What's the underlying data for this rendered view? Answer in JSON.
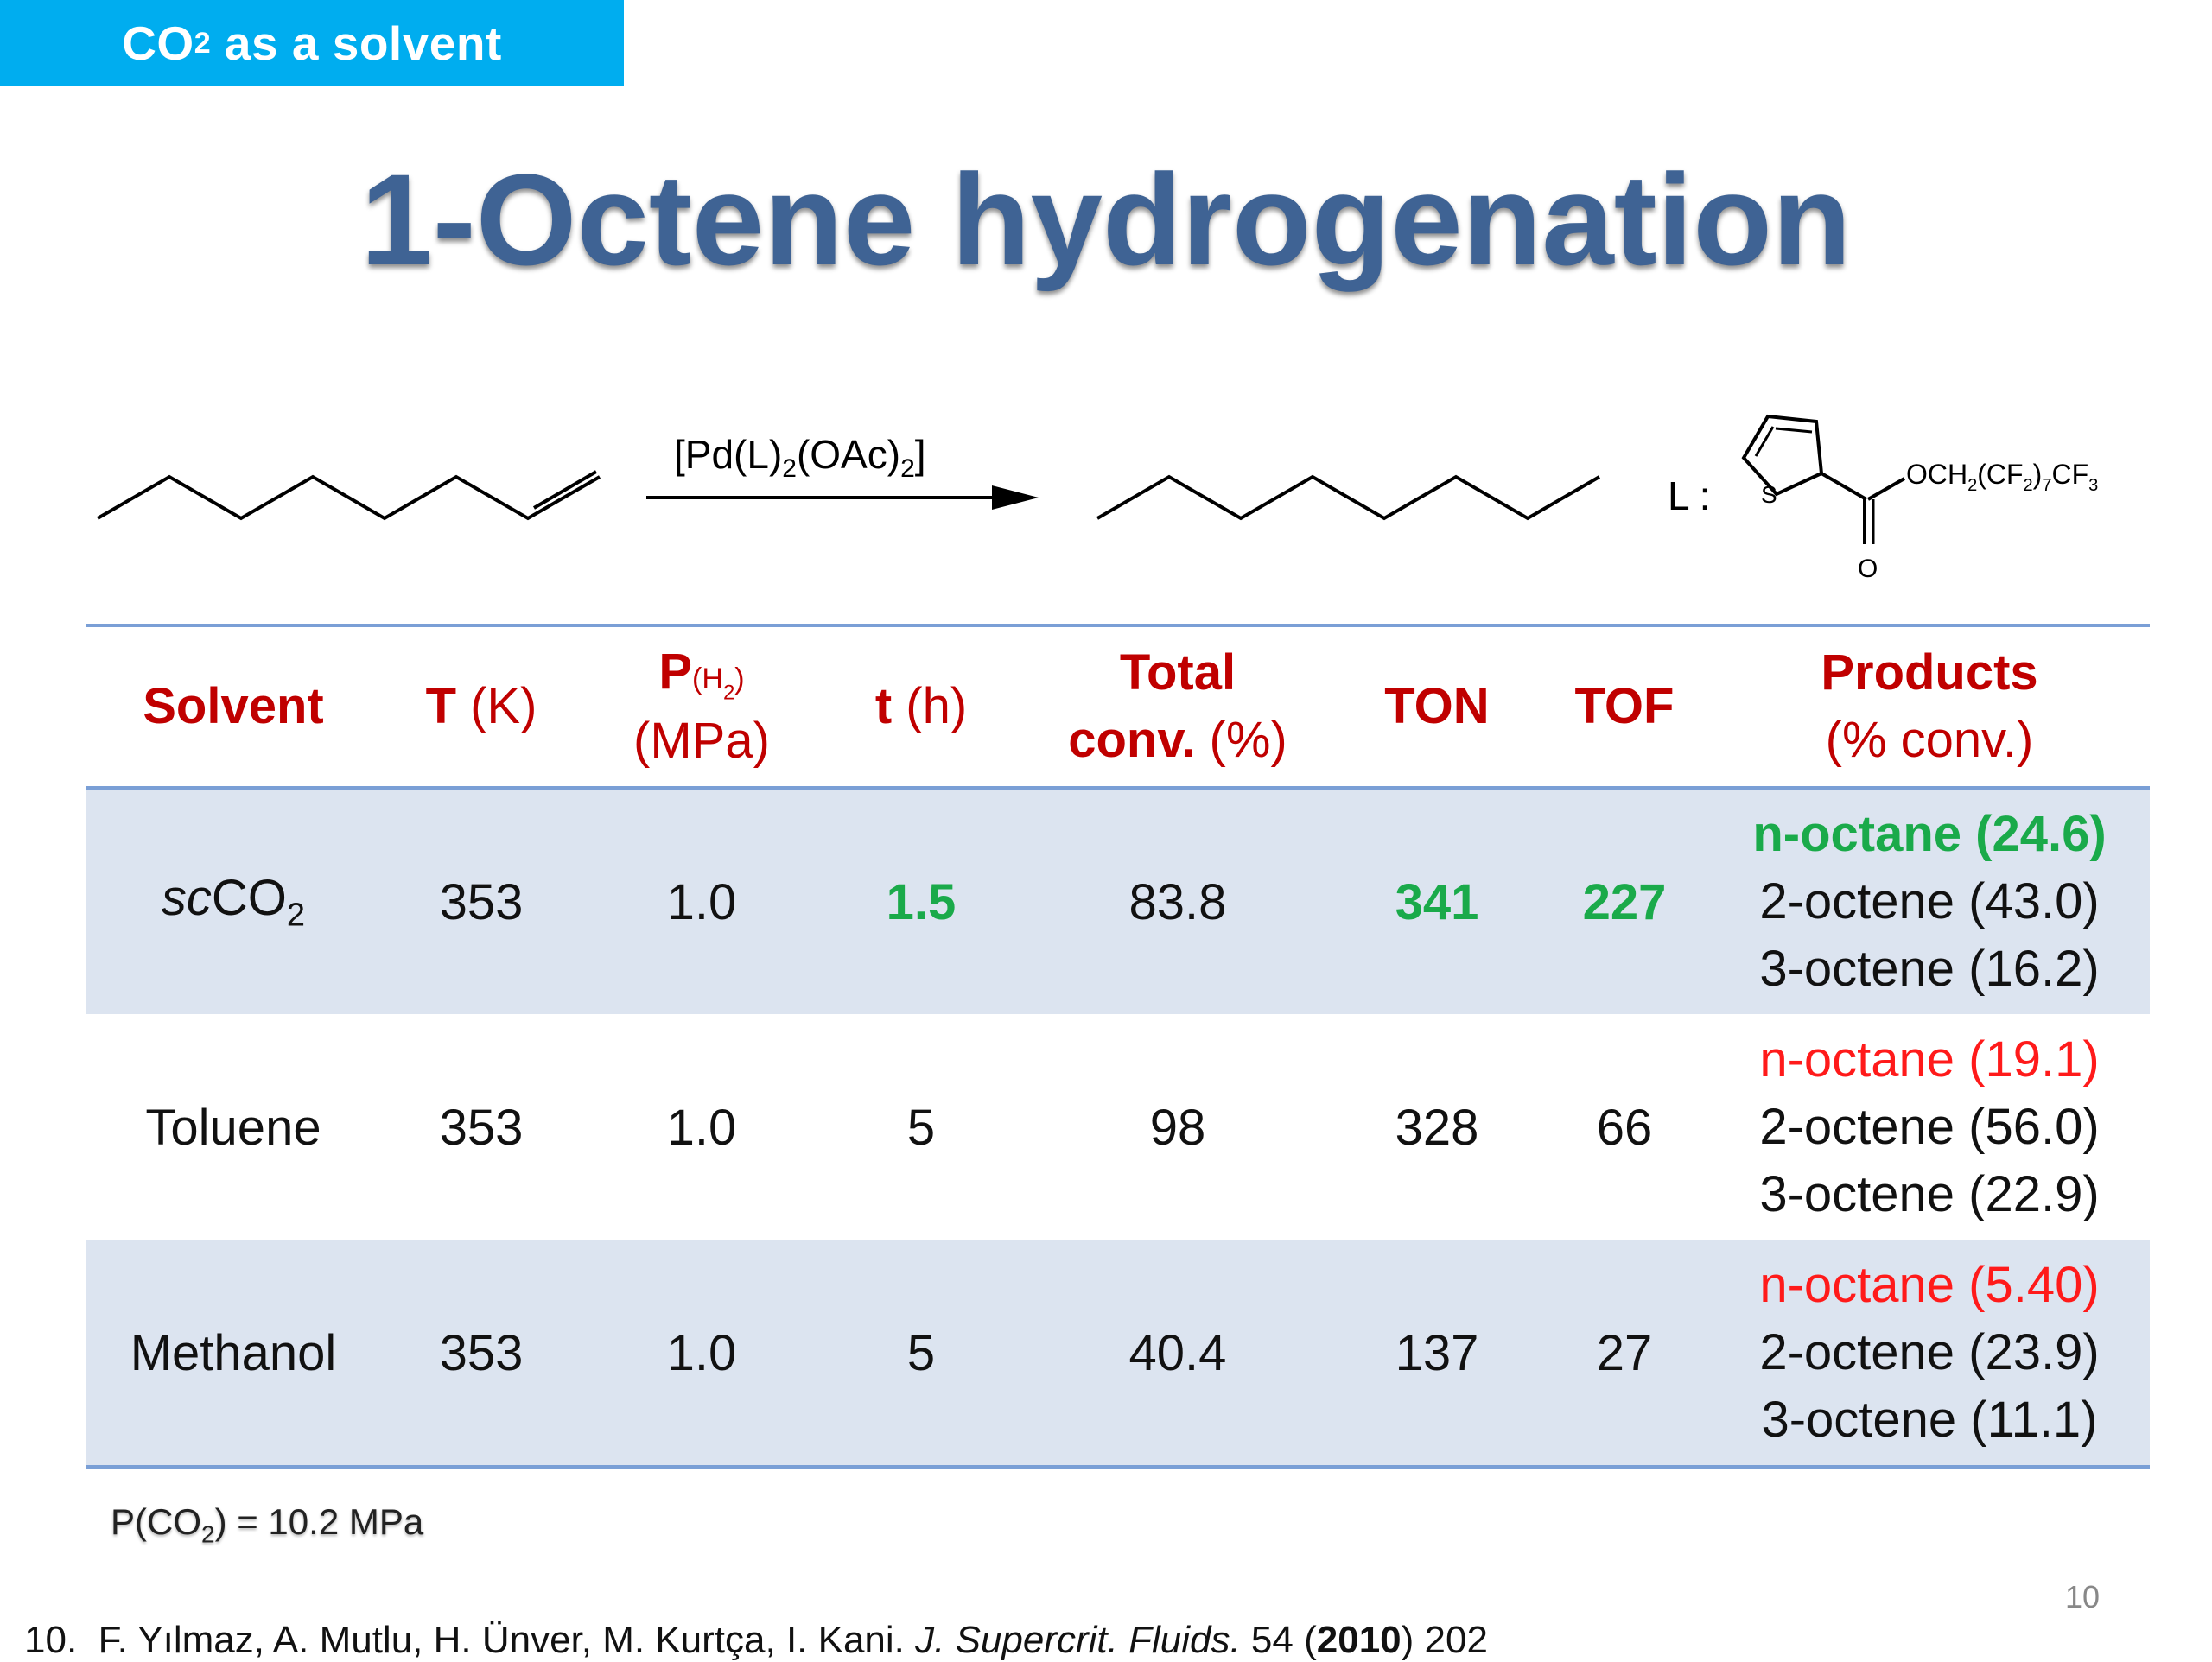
{
  "header": {
    "section_tag": "CO",
    "section_tag_sub": "2",
    "section_tag_rest": " as a solvent"
  },
  "title": "1-Octene hydrogenation",
  "scheme": {
    "reagent": "[Pd(L)2(OAc)2]",
    "ligand_label": "L :",
    "ligand_substituent": "OCH2(CF2)7CF3",
    "atom_s": "S",
    "atom_o": "O"
  },
  "table": {
    "headers": {
      "solvent": "Solvent",
      "temp_sym": "T",
      "temp_unit": " (K)",
      "press_sym": "P",
      "press_sub": "(H",
      "press_sub2": "2",
      "press_sub3": ")",
      "press_unit": "(MPa)",
      "time_sym": "t",
      "time_unit": " (h)",
      "conv_line1": "Total",
      "conv_line2a": "conv.",
      "conv_line2b": " (%)",
      "ton": "TON",
      "tof": "TOF",
      "products_line1": "Products",
      "products_line2": "(% conv.)"
    },
    "rows": [
      {
        "solvent_a": "sc",
        "solvent_b": "CO",
        "solvent_c": "2",
        "t": "353",
        "p": "1.0",
        "time": "1.5",
        "conv": "83.8",
        "ton": "341",
        "tof": "227",
        "products": [
          "n-octane (24.6)",
          "2-octene (43.0)",
          "3-octene (16.2)"
        ]
      },
      {
        "solvent": "Toluene",
        "t": "353",
        "p": "1.0",
        "time": "5",
        "conv": "98",
        "ton": "328",
        "tof": "66",
        "products": [
          "n-octane (19.1)",
          "2-octene (56.0)",
          "3-octene (22.9)"
        ]
      },
      {
        "solvent": "Methanol",
        "t": "353",
        "p": "1.0",
        "time": "5",
        "conv": "40.4",
        "ton": "137",
        "tof": "27",
        "products": [
          "n-octane (5.40)",
          "2-octene (23.9)",
          "3-octene (11.1)"
        ]
      }
    ]
  },
  "note": {
    "a": "P(CO",
    "b": "2",
    "c": ") = 10.2 MPa"
  },
  "page_number": "10",
  "reference": {
    "num": "10.",
    "authors": "F. Yılmaz, A. Mutlu, H. Ünver, M. Kurtça, I. Kani. ",
    "journal": "J. Supercrit. Fluids.",
    "vol": " 54 (",
    "year": "2010",
    "pages": ") 202"
  },
  "colors": {
    "tag_bg": "#00adef",
    "title": "#3f6394",
    "header_red": "#c00000",
    "highlight_green": "#1aaa4a",
    "highlight_red": "#ff1a1a",
    "row_shade": "#dce4f0",
    "rule_blue": "#7a9fd6"
  }
}
